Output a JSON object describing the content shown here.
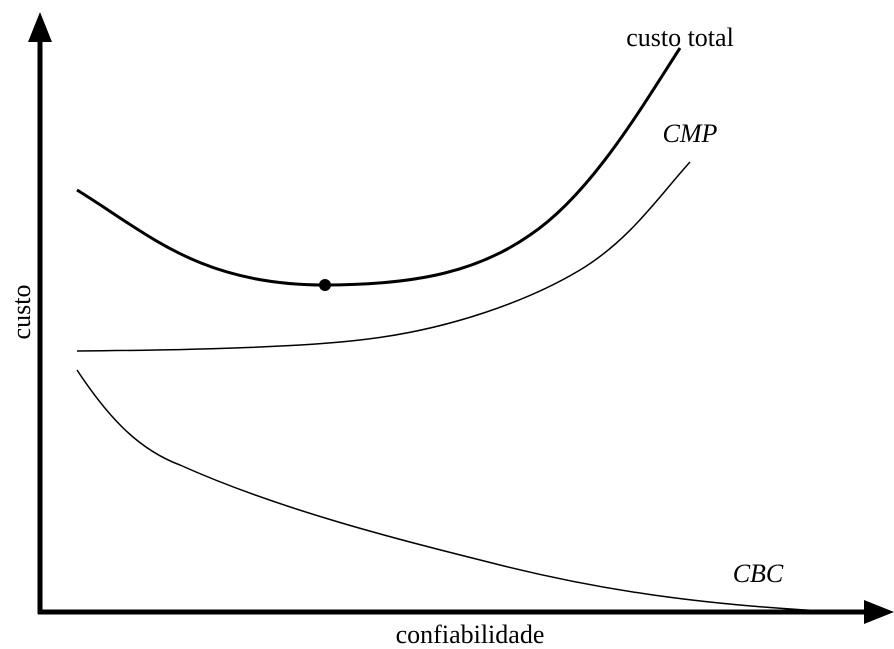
{
  "labels": {
    "total_cost": "custo total",
    "cmp": "CMP",
    "cbc": "CBC"
  },
  "axes": {
    "y": "custo",
    "x": "confiabilidade"
  }
}
